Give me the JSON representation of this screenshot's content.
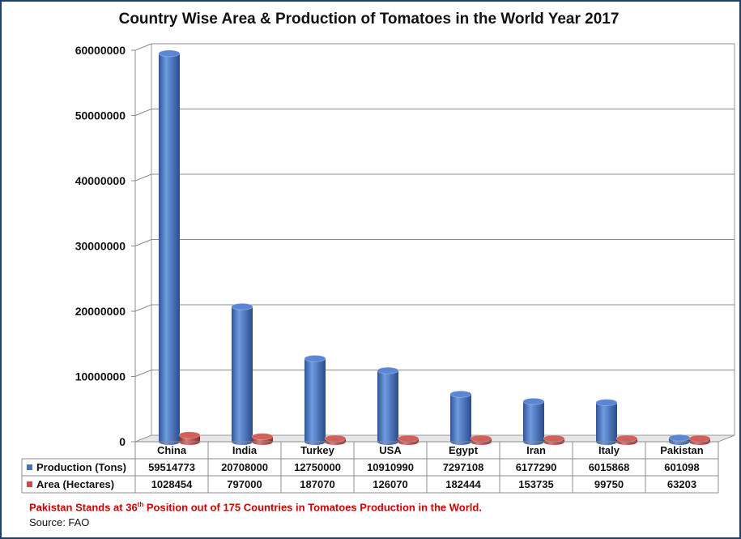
{
  "chart_data": {
    "type": "bar",
    "title": "Country Wise Area & Production of Tomatoes in the World Year 2017",
    "categories": [
      "China",
      "India",
      "Turkey",
      "USA",
      "Egypt",
      "Iran",
      "Italy",
      "Pakistan"
    ],
    "series": [
      {
        "name": "Production (Tons)",
        "color": "#4472c4",
        "values": [
          59514773,
          20708000,
          12750000,
          10910990,
          7297108,
          6177290,
          6015868,
          601098
        ]
      },
      {
        "name": "Area (Hectares)",
        "color": "#c0504d",
        "values": [
          1028454,
          797000,
          187070,
          126070,
          182444,
          153735,
          99750,
          63203
        ]
      }
    ],
    "y_ticks": [
      "0",
      "10000000",
      "20000000",
      "30000000",
      "40000000",
      "50000000",
      "60000000"
    ],
    "ylim": [
      0,
      60000000
    ],
    "grid": true,
    "legend": "data-table",
    "data_table": true
  },
  "footnote": {
    "text_before": "Pakistan Stands at 36",
    "superscript": "th",
    "text_after": " Position out of 175 Countries in Tomatoes Production in the World.",
    "color": "#d00000"
  },
  "source": "Source: FAO"
}
